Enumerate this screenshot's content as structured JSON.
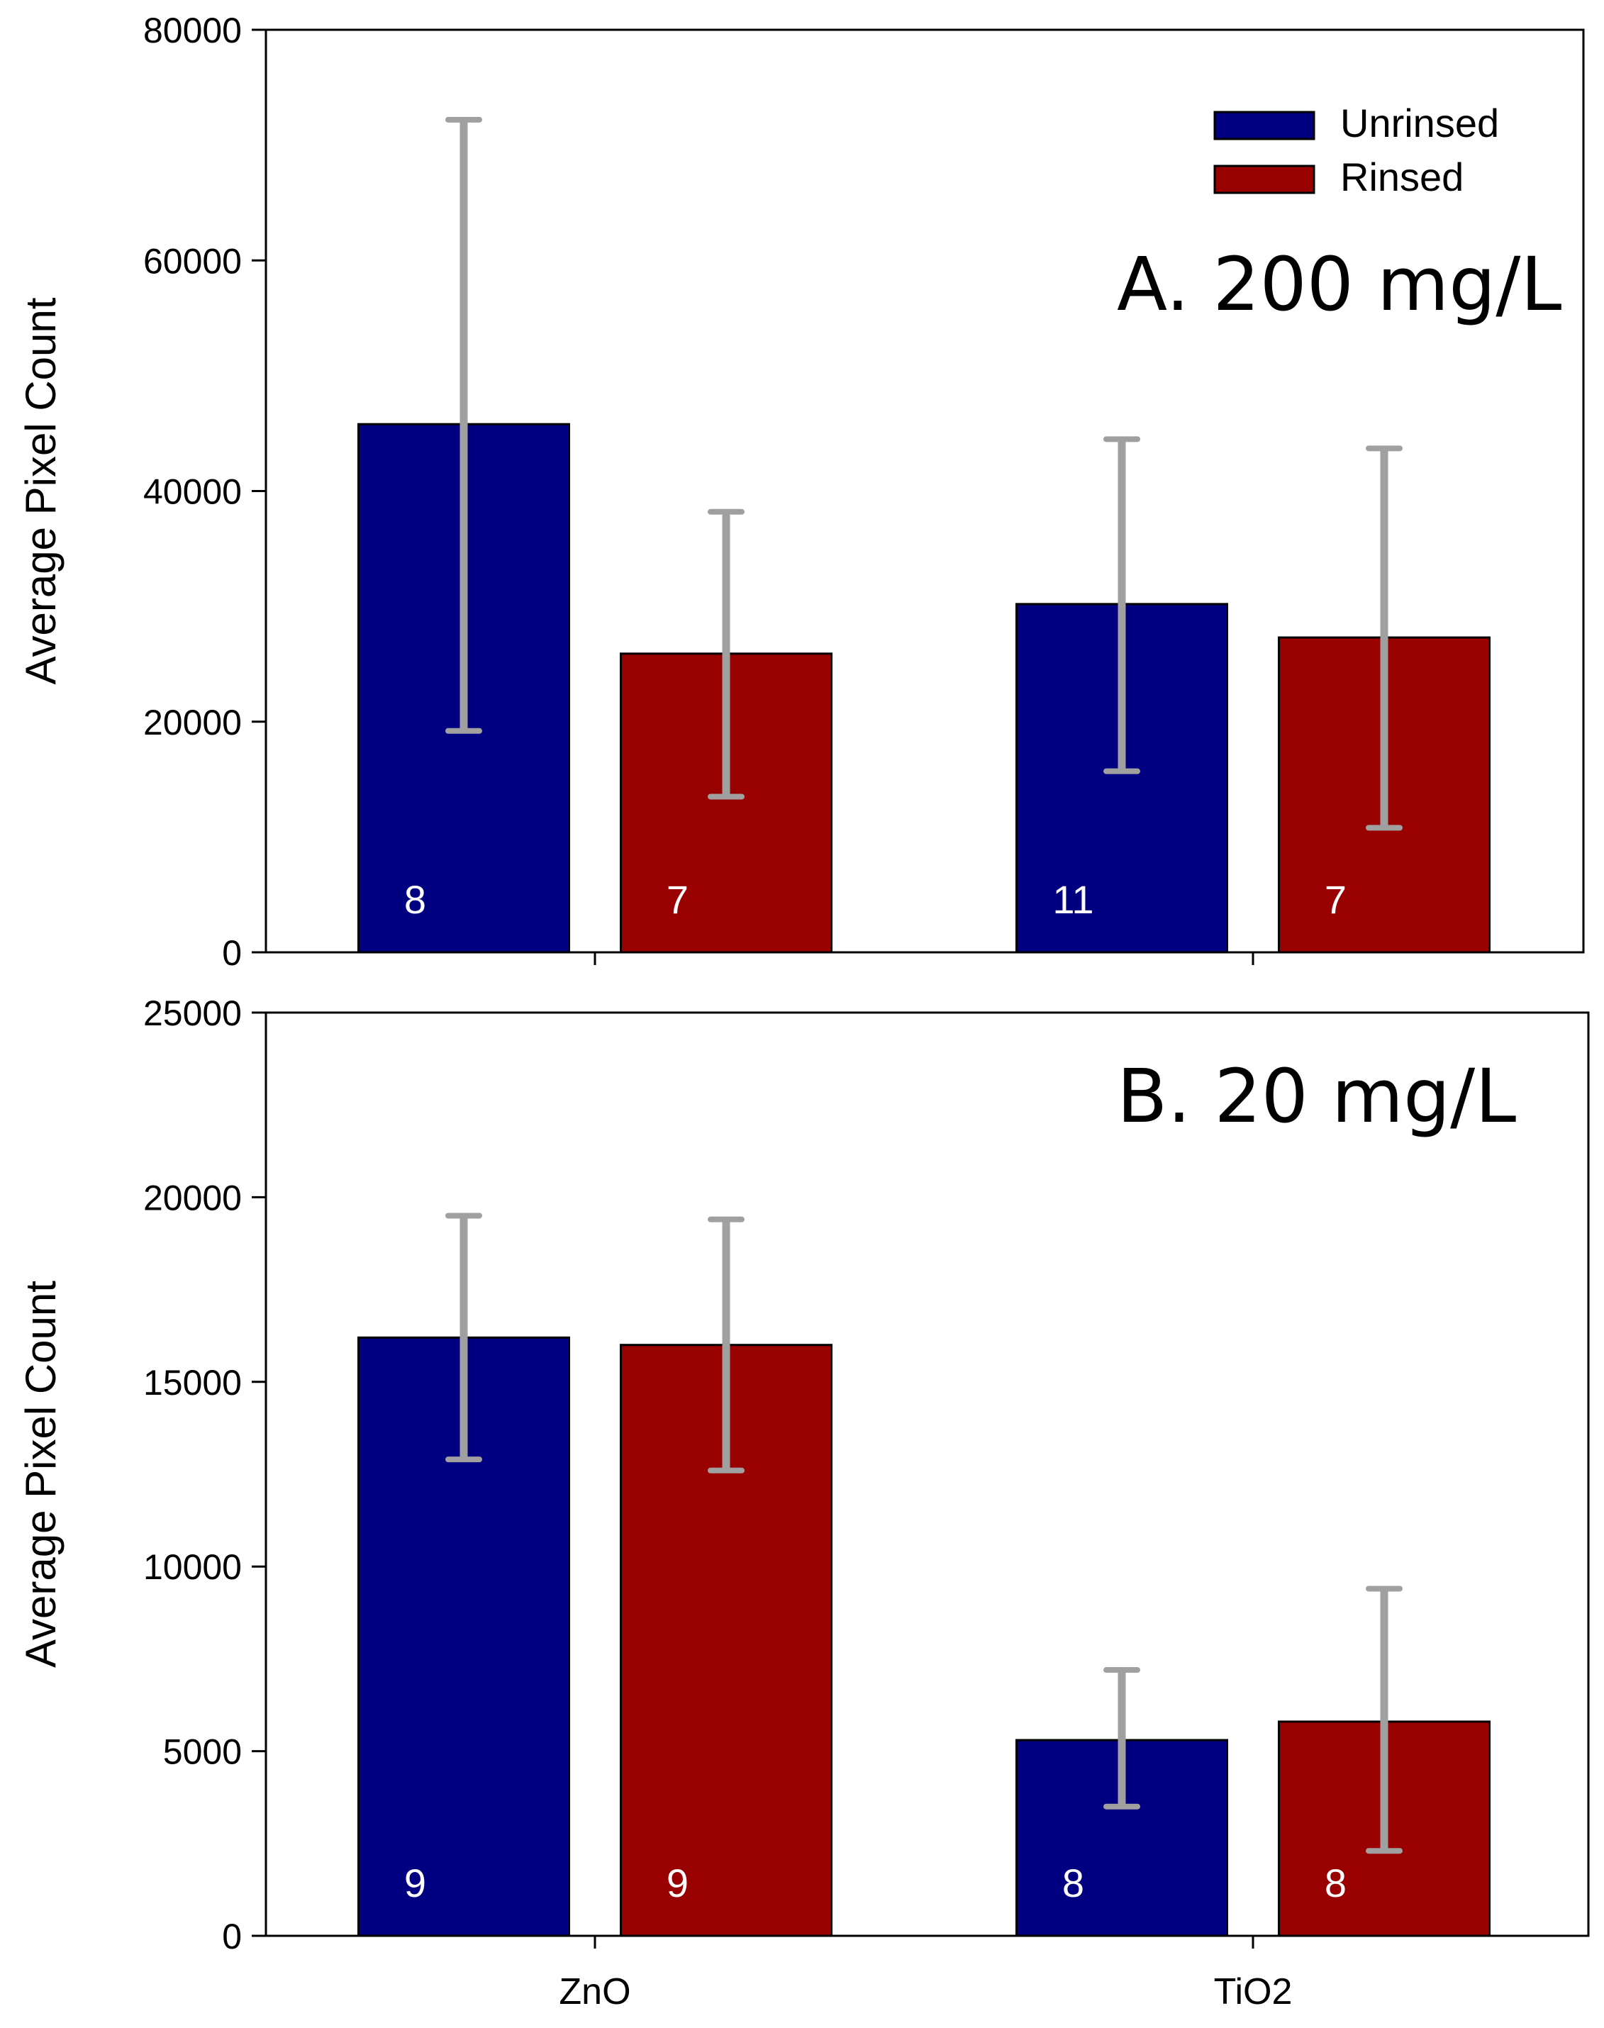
{
  "chart_data": [
    {
      "type": "bar",
      "title": "A. 200 mg/L",
      "ylabel": "Average Pixel Count",
      "xlabel": "",
      "ylim": [
        0,
        80000
      ],
      "yticks": [
        0,
        20000,
        40000,
        60000,
        80000
      ],
      "categories": [
        "ZnO",
        "TiO2"
      ],
      "show_category_labels": false,
      "legend": {
        "placement": "top-right",
        "entries": [
          "Unrinsed",
          "Rinsed"
        ]
      },
      "grid": false,
      "series": [
        {
          "name": "Unrinsed",
          "color": "#000080",
          "values": [
            45800,
            30200
          ],
          "error_low": [
            19200,
            15700
          ],
          "error_high": [
            72200,
            44500
          ],
          "n": [
            "8",
            "11"
          ]
        },
        {
          "name": "Rinsed",
          "color": "#990000",
          "values": [
            25900,
            27300
          ],
          "error_low": [
            13500,
            10800
          ],
          "error_high": [
            38200,
            43700
          ],
          "n": [
            "7",
            "7"
          ]
        }
      ]
    },
    {
      "type": "bar",
      "title": "B. 20 mg/L",
      "ylabel": "Average Pixel Count",
      "xlabel": "",
      "ylim": [
        0,
        25000
      ],
      "yticks": [
        0,
        5000,
        10000,
        15000,
        20000,
        25000
      ],
      "categories": [
        "ZnO",
        "TiO2"
      ],
      "show_category_labels": true,
      "grid": false,
      "series": [
        {
          "name": "Unrinsed",
          "color": "#000080",
          "values": [
            16200,
            5300
          ],
          "error_low": [
            12900,
            3500
          ],
          "error_high": [
            19500,
            7200
          ],
          "n": [
            "9",
            "8"
          ]
        },
        {
          "name": "Rinsed",
          "color": "#990000",
          "values": [
            16000,
            5800
          ],
          "error_low": [
            12600,
            2300
          ],
          "error_high": [
            19400,
            9400
          ],
          "n": [
            "9",
            "8"
          ]
        }
      ]
    }
  ],
  "style": {
    "error_bar_color": "#a0a0a0",
    "axis_color": "#000000",
    "count_label_color": "#ffffff"
  }
}
